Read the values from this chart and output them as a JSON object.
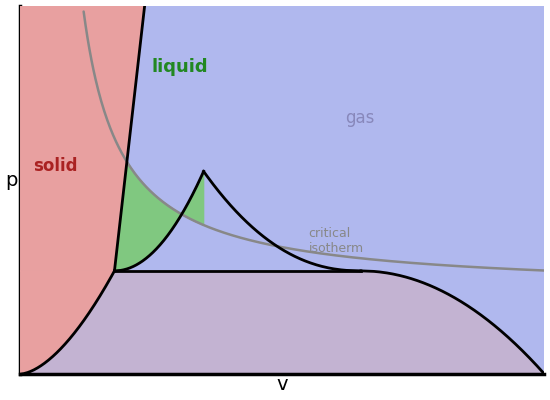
{
  "xlabel": "v",
  "ylabel": "p",
  "background_color": "#ffffff",
  "solid_color": "#e8a0a0",
  "liquid_color": "#80c880",
  "gas_color": "#b0b8ee",
  "below_triple_color": "#d0b0c0",
  "isotherm_color": "#888888",
  "boundary_color": "#000000",
  "solid_label": "solid",
  "liquid_label": "liquid",
  "gas_label": "gas",
  "isotherm_label": "critical\nisotherm",
  "solid_label_color": "#aa2222",
  "liquid_label_color": "#228822",
  "gas_label_color": "#8888bb",
  "isotherm_label_color": "#888888"
}
